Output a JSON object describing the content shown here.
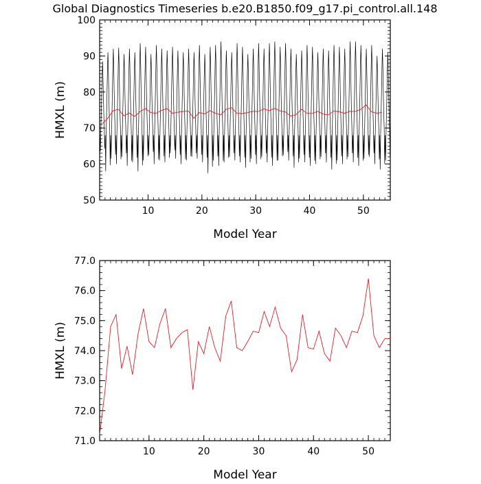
{
  "chart_data": [
    {
      "type": "line",
      "title": "Global Diagnostics Timeseries b.e20.B1850.f09_g17.pi_control.all.148",
      "xlabel": "Model Year",
      "ylabel": "HMXL (m)",
      "xlim": [
        1,
        55
      ],
      "ylim": [
        50,
        100
      ],
      "xticks": [
        10,
        20,
        30,
        40,
        50
      ],
      "yticks": [
        50,
        60,
        70,
        80,
        90,
        100
      ],
      "series": [
        {
          "kind": "monthly",
          "color": "#000000",
          "months_per_year": 12,
          "annual_max": [
            88.5,
            91.0,
            92.0,
            92.3,
            90.5,
            92.0,
            91.0,
            93.5,
            92.5,
            90.5,
            93.0,
            92.0,
            91.5,
            92.5,
            91.5,
            91.0,
            92.0,
            91.0,
            93.0,
            90.5,
            92.5,
            93.0,
            94.0,
            91.5,
            91.0,
            93.5,
            92.5,
            90.5,
            92.0,
            93.5,
            92.0,
            93.5,
            94.0,
            92.5,
            93.5,
            92.0,
            90.5,
            91.5,
            93.0,
            92.5,
            91.0,
            92.0,
            91.5,
            93.0,
            92.5,
            92.0,
            94.0,
            94.0,
            93.0,
            92.0,
            93.0,
            90.0,
            92.0,
            91.0
          ],
          "annual_min": [
            63.5,
            58.0,
            61.5,
            60.0,
            62.0,
            59.5,
            60.5,
            58.0,
            61.0,
            62.5,
            60.0,
            61.0,
            60.5,
            63.0,
            61.5,
            60.0,
            61.0,
            62.0,
            61.5,
            60.5,
            57.5,
            61.0,
            59.5,
            60.5,
            62.0,
            61.0,
            60.5,
            59.0,
            61.5,
            60.0,
            62.0,
            60.5,
            59.5,
            61.0,
            62.5,
            61.0,
            59.0,
            61.5,
            60.5,
            59.5,
            60.0,
            62.0,
            60.5,
            58.5,
            61.0,
            60.0,
            62.0,
            60.5,
            59.5,
            61.5,
            62.0,
            60.0,
            58.5,
            61.0
          ]
        },
        {
          "kind": "annual",
          "color": "#e51c23",
          "x": [
            1.5,
            2.5,
            3.5,
            4.5,
            5.5,
            6.5,
            7.5,
            8.5,
            9.5,
            10.5,
            11.5,
            12.5,
            13.5,
            14.5,
            15.5,
            16.5,
            17.5,
            18.5,
            19.5,
            20.5,
            21.5,
            22.5,
            23.5,
            24.5,
            25.5,
            26.5,
            27.5,
            28.5,
            29.5,
            30.5,
            31.5,
            32.5,
            33.5,
            34.5,
            35.5,
            36.5,
            37.5,
            38.5,
            39.5,
            40.5,
            41.5,
            42.5,
            43.5,
            44.5,
            45.5,
            46.5,
            47.5,
            48.5,
            49.5,
            50.5,
            51.5,
            52.5,
            53.5
          ],
          "y": [
            71.2,
            72.7,
            74.8,
            75.2,
            73.4,
            74.15,
            73.2,
            74.55,
            75.4,
            74.3,
            74.1,
            74.9,
            75.4,
            74.1,
            74.4,
            74.6,
            74.7,
            72.7,
            74.3,
            73.9,
            74.8,
            74.1,
            73.65,
            75.15,
            75.65,
            74.1,
            74.0,
            74.3,
            74.65,
            74.6,
            75.3,
            74.8,
            75.45,
            74.75,
            74.5,
            73.3,
            73.7,
            75.2,
            74.1,
            74.05,
            74.65,
            73.9,
            73.65,
            74.75,
            74.5,
            74.1,
            74.65,
            74.6,
            75.15,
            76.4,
            74.5,
            74.1,
            74.4
          ]
        }
      ]
    },
    {
      "type": "line",
      "title": "",
      "xlabel": "Model Year",
      "ylabel": "HMXL (m)",
      "xlim": [
        1,
        54
      ],
      "ylim": [
        71.0,
        77.0
      ],
      "xticks": [
        10,
        20,
        30,
        40,
        50
      ],
      "yticks": [
        71.0,
        72.0,
        73.0,
        74.0,
        75.0,
        76.0,
        77.0
      ],
      "ytick_labels": [
        "71.0",
        "72.0",
        "73.0",
        "74.0",
        "75.0",
        "76.0",
        "77.0"
      ],
      "series": [
        {
          "kind": "annual",
          "color": "#e51c23",
          "x": [
            1.0,
            2.0,
            3.0,
            4.0,
            5.0,
            6.0,
            7.0,
            8.0,
            9.0,
            10.0,
            11.0,
            12.0,
            13.0,
            14.0,
            15.0,
            16.0,
            17.0,
            18.0,
            19.0,
            20.0,
            21.0,
            22.0,
            23.0,
            24.0,
            25.0,
            26.0,
            27.0,
            28.0,
            29.0,
            30.0,
            31.0,
            32.0,
            33.0,
            34.0,
            35.0,
            36.0,
            37.0,
            38.0,
            39.0,
            40.0,
            41.0,
            42.0,
            43.0,
            44.0,
            45.0,
            46.0,
            47.0,
            48.0,
            49.0,
            50.0,
            51.0,
            52.0,
            53.0,
            54.0
          ],
          "y": [
            71.2,
            72.7,
            74.8,
            75.2,
            73.4,
            74.15,
            73.2,
            74.55,
            75.4,
            74.3,
            74.1,
            74.9,
            75.4,
            74.1,
            74.4,
            74.6,
            74.7,
            72.7,
            74.3,
            73.9,
            74.8,
            74.1,
            73.65,
            75.15,
            75.65,
            74.1,
            74.0,
            74.3,
            74.65,
            74.6,
            75.3,
            74.8,
            75.45,
            74.75,
            74.5,
            73.3,
            73.7,
            75.2,
            74.1,
            74.05,
            74.65,
            73.9,
            73.65,
            74.75,
            74.5,
            74.1,
            74.65,
            74.6,
            75.15,
            76.4,
            74.5,
            74.1,
            74.4,
            74.4
          ]
        }
      ]
    }
  ]
}
